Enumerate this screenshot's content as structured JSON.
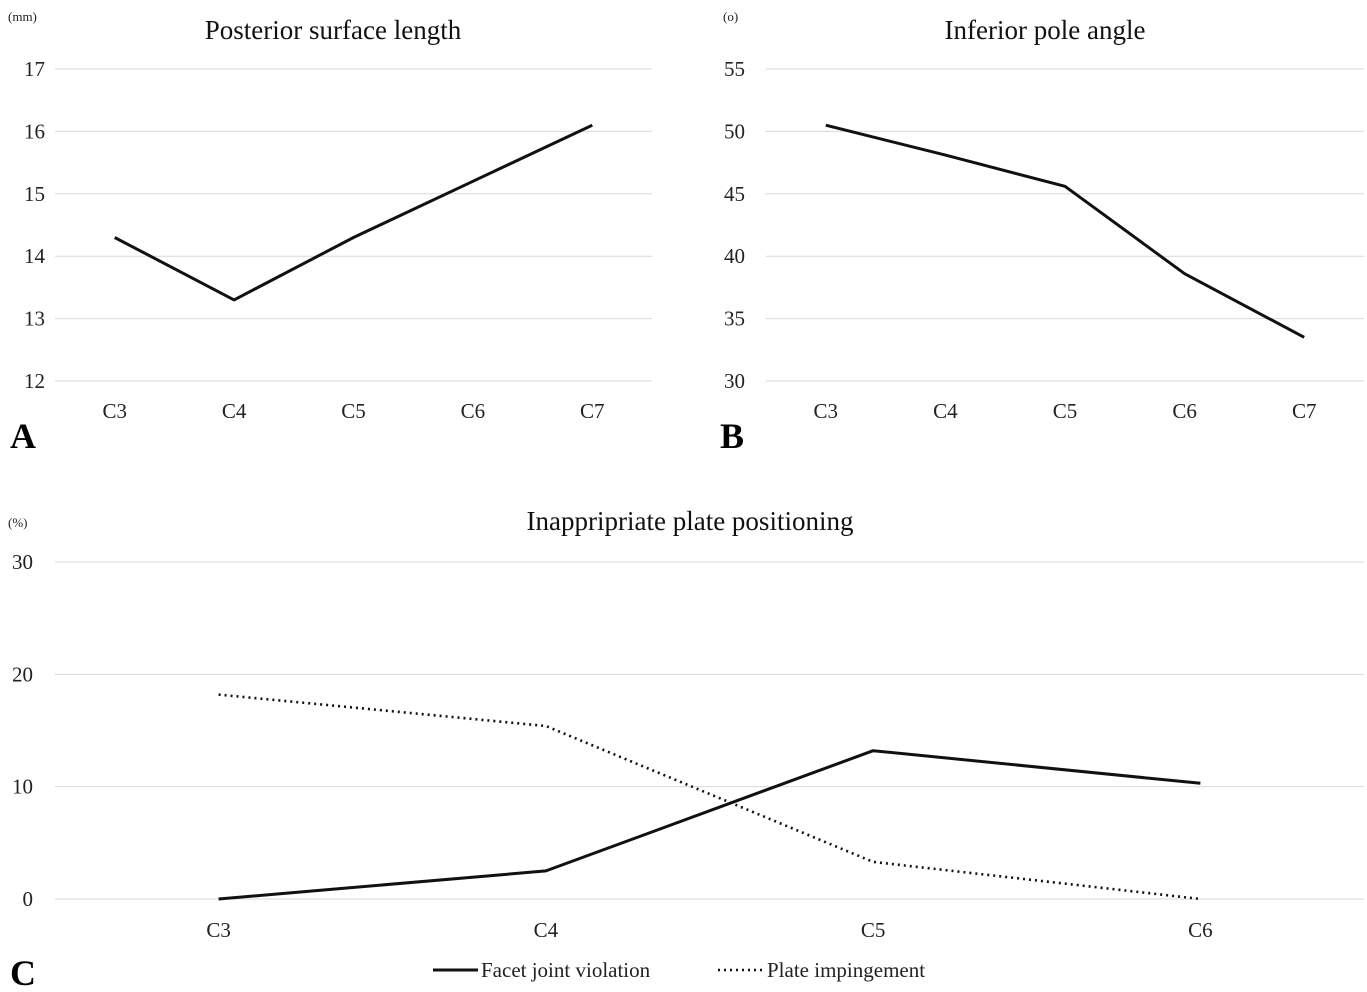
{
  "chart_data": [
    {
      "type": "line",
      "panel": "A",
      "title": "Posterior surface length",
      "unit": "(mm)",
      "categories": [
        "C3",
        "C4",
        "C5",
        "C6",
        "C7"
      ],
      "ylim": [
        12,
        17
      ],
      "yticks": [
        12,
        13,
        14,
        15,
        16,
        17
      ],
      "grid": true,
      "series": [
        {
          "values": [
            14.3,
            13.3,
            14.3,
            15.2,
            16.1
          ],
          "style": "solid"
        }
      ]
    },
    {
      "type": "line",
      "panel": "B",
      "title": "Inferior pole angle",
      "unit": "(o)",
      "categories": [
        "C3",
        "C4",
        "C5",
        "C6",
        "C7"
      ],
      "ylim": [
        30,
        55
      ],
      "yticks": [
        30,
        35,
        40,
        45,
        50,
        55
      ],
      "grid": true,
      "series": [
        {
          "values": [
            50.5,
            48.1,
            45.6,
            38.6,
            33.5
          ],
          "style": "solid"
        }
      ]
    },
    {
      "type": "line",
      "panel": "C",
      "title": "Inappripriate plate positioning",
      "unit": "(%)",
      "categories": [
        "C3",
        "C4",
        "C5",
        "C6"
      ],
      "ylim": [
        0,
        30
      ],
      "yticks": [
        0,
        10,
        20,
        30
      ],
      "grid": true,
      "legend_position": "bottom",
      "series": [
        {
          "name": "Facet joint violation",
          "values": [
            0,
            2.5,
            13.2,
            10.3
          ],
          "style": "solid"
        },
        {
          "name": "Plate impingement",
          "values": [
            18.2,
            15.4,
            3.3,
            0
          ],
          "style": "dotted"
        }
      ]
    }
  ]
}
